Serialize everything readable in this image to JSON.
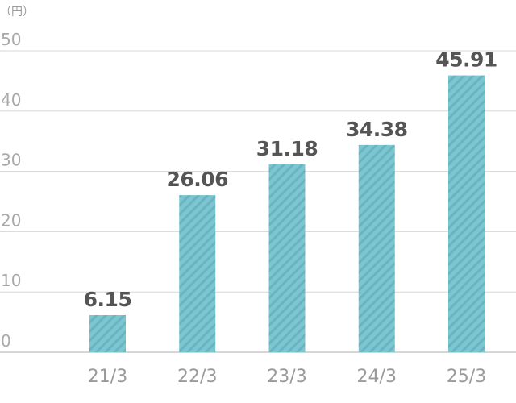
{
  "chart_data": {
    "type": "bar",
    "unit_label": "（円）",
    "categories": [
      "21/3",
      "22/3",
      "23/3",
      "24/3",
      "25/3"
    ],
    "values": [
      6.15,
      26.06,
      31.18,
      34.38,
      45.91
    ],
    "value_labels": [
      "6.15",
      "26.06",
      "31.18",
      "34.38",
      "45.91"
    ],
    "yticks": [
      "0",
      "10",
      "20",
      "30",
      "40",
      "50"
    ],
    "ylim": [
      0,
      50
    ],
    "grid": true,
    "colors": {
      "bar": "#7cc6d2",
      "bar_stripe": "#6ab4c0",
      "grid": "#d7d7d7"
    }
  }
}
